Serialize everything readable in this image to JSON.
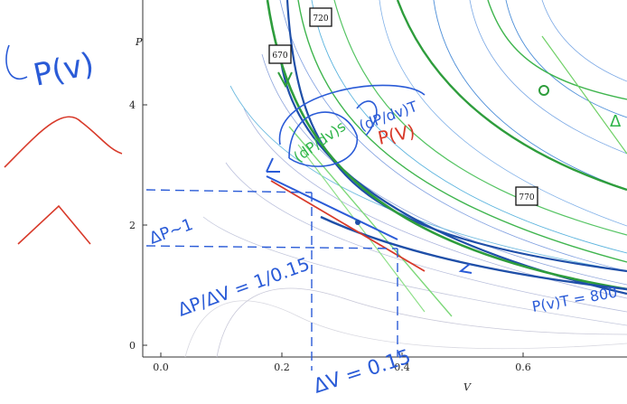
{
  "axes": {
    "x_label": "V",
    "y_label": "P",
    "x_ticks": [
      "0.0",
      "0.2",
      "0.4",
      "0.6"
    ],
    "y_ticks": [
      "0",
      "2",
      "4"
    ]
  },
  "isotherm_labels": [
    "670",
    "720",
    "770"
  ],
  "annotations": {
    "p_of_v_left": "P(v)",
    "dp_dv_s": "(dP/dv)s",
    "dp_dv_t": "(dP/dv)T",
    "p_of_v_red": "P(V)",
    "delta_p": "ΔP~1",
    "ratio": "ΔP/ΔV = 1/0.15",
    "delta_v": "ΔV = 0.15",
    "p_of_v_t": "P(v)T = 800",
    "delta_right": "Δ"
  },
  "colors": {
    "ink_blue": "#2a5bd7",
    "ink_red": "#d83a2a",
    "ink_green": "#2fb54a",
    "isotherm_dark": "#1f4fa8",
    "adiabat_green": "#2e9d3c"
  }
}
